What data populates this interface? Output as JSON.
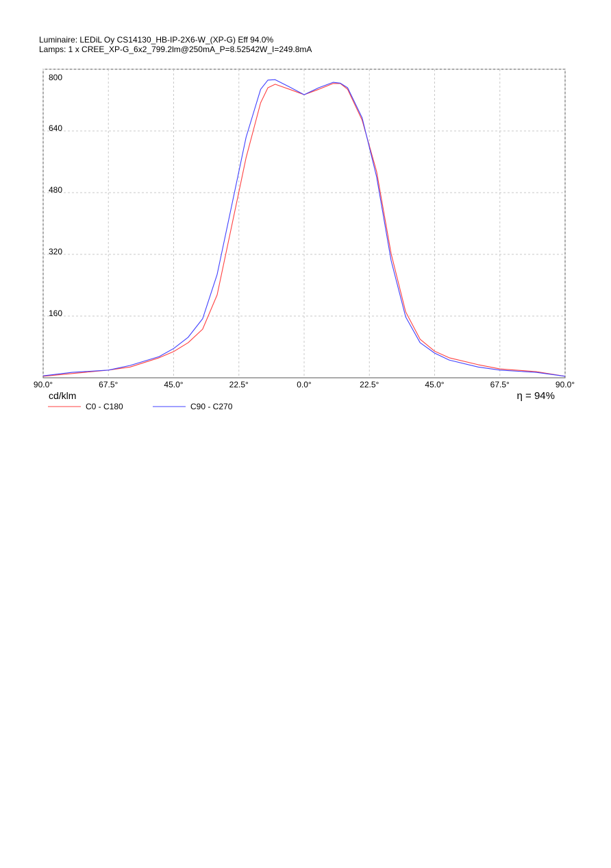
{
  "chart_data": {
    "type": "line",
    "title": "Luminaire: LEDiL Oy CS14130_HB-IP-2X6-W_(XP-G) Eff 94.0%",
    "subtitle": "Lamps: 1 x CREE_XP-G_6x2_799.2lm@250mA_P=8.52542W_I=249.8mA",
    "y_label": "cd/klm",
    "annotation": "η = 94%",
    "x": [
      -90,
      -80,
      -67.5,
      -60,
      -50,
      -45,
      -40,
      -35,
      -30,
      -25,
      -20,
      -17.5,
      -15,
      -12.5,
      -10,
      -5,
      0,
      5,
      10,
      12.5,
      15,
      20,
      25,
      30,
      35,
      40,
      45,
      50,
      60,
      67.5,
      80,
      90
    ],
    "series": [
      {
        "name": "C0 - C180",
        "color": "#ff4040",
        "values": [
          4,
          11,
          20,
          28,
          52,
          68,
          91,
          126,
          215,
          393,
          571,
          642,
          713,
          752,
          761,
          748,
          734,
          748,
          763,
          763,
          748,
          668,
          535,
          322,
          171,
          100,
          69,
          52,
          34,
          23,
          16,
          4
        ]
      },
      {
        "name": "C90 - C270",
        "color": "#4040ff",
        "values": [
          5,
          14,
          20,
          32,
          55,
          76,
          105,
          153,
          268,
          446,
          624,
          686,
          748,
          772,
          773,
          754,
          734,
          752,
          766,
          764,
          752,
          674,
          521,
          304,
          158,
          91,
          64,
          46,
          28,
          20,
          14,
          4
        ]
      }
    ],
    "xlim": [
      -90,
      90
    ],
    "xticks": [
      {
        "value": -90,
        "label": "90.0°"
      },
      {
        "value": -67.5,
        "label": "67.5°"
      },
      {
        "value": -45,
        "label": "45.0°"
      },
      {
        "value": -22.5,
        "label": "22.5°"
      },
      {
        "value": 0,
        "label": "0.0°"
      },
      {
        "value": 22.5,
        "label": "22.5°"
      },
      {
        "value": 45,
        "label": "45.0°"
      },
      {
        "value": 67.5,
        "label": "67.5°"
      },
      {
        "value": 90,
        "label": "90.0°"
      }
    ],
    "ylim": [
      0,
      800
    ],
    "yticks": [
      160,
      320,
      480,
      640,
      800
    ],
    "grid": true
  }
}
